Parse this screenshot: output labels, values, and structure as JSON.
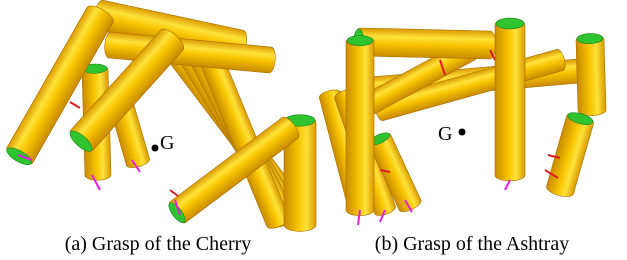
{
  "figure": {
    "panels": [
      {
        "point_label": "G",
        "caption": "(a) Grasp of the Cherry"
      },
      {
        "point_label": "G",
        "caption": "(b) Grasp of the Ashtray"
      }
    ]
  }
}
